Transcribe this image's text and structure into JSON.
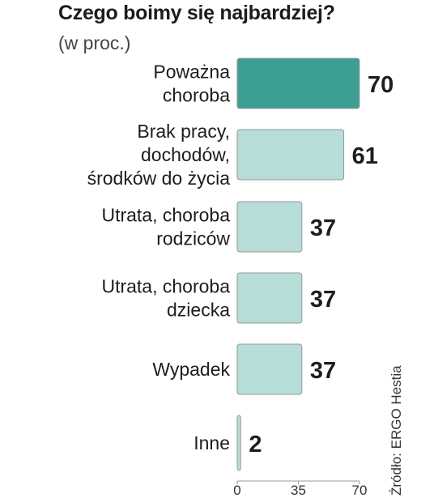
{
  "colors": {
    "highlight": "#3d9f91",
    "bar": "#b6ddd7",
    "bar_border": "#ffffff",
    "axis": "#999999"
  },
  "source": "Źródło: ERGO Hestia",
  "chart_data": {
    "type": "bar",
    "orientation": "horizontal",
    "title": "Czego boimy się najbardziej?",
    "subtitle": "(w proc.)",
    "categories": [
      [
        "Poważna",
        "choroba"
      ],
      [
        "Brak pracy,",
        "dochodów,",
        "środków do życia"
      ],
      [
        "Utrata, choroba",
        "rodziców"
      ],
      [
        "Utrata, choroba",
        "dziecka"
      ],
      [
        "Wypadek"
      ],
      [
        "Inne"
      ]
    ],
    "values": [
      70,
      61,
      37,
      37,
      37,
      2
    ],
    "highlighted_index": 0,
    "xlim": [
      0,
      70
    ],
    "xticks": [
      0,
      35,
      70
    ],
    "grid": false,
    "legend": "none"
  }
}
